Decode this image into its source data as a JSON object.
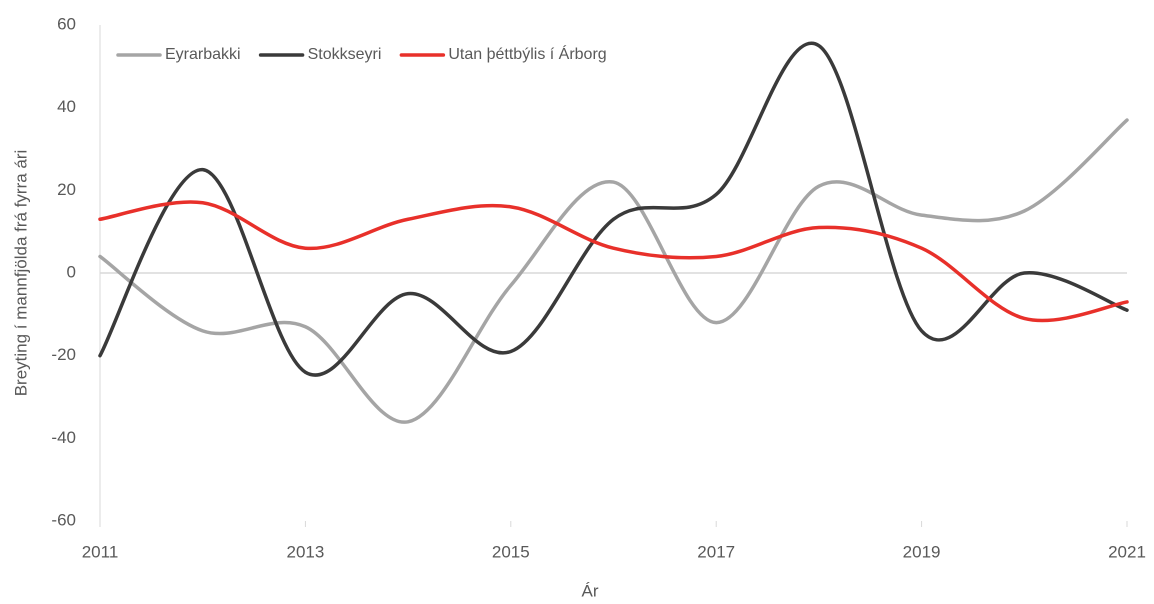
{
  "chart_data": {
    "type": "line",
    "x": [
      2011,
      2012,
      2013,
      2014,
      2015,
      2016,
      2017,
      2018,
      2019,
      2020,
      2021
    ],
    "xlim": [
      2011,
      2021
    ],
    "xticks": [
      2011,
      2013,
      2015,
      2017,
      2019,
      2021
    ],
    "ylim": [
      -60,
      60
    ],
    "yticks": [
      -60,
      -40,
      -20,
      0,
      20,
      40,
      60
    ],
    "xlabel": "Ár",
    "ylabel": "Breyting í mannfjölda frá fyrra ári",
    "grid": false,
    "smooth": true,
    "legend": "top-left",
    "series": [
      {
        "name": "Eyrarbakki",
        "color": "#a5a5a5",
        "values": [
          4,
          -14,
          -13,
          -36,
          -3,
          22,
          -12,
          21,
          14,
          15,
          37
        ]
      },
      {
        "name": "Stokkseyri",
        "color": "#3a3a3a",
        "values": [
          -20,
          25,
          -24,
          -5,
          -19,
          13,
          19,
          55,
          -14,
          0,
          -9
        ]
      },
      {
        "name": "Utan þéttbýlis í Árborg",
        "color": "#e8302a",
        "values": [
          13,
          17,
          6,
          13,
          16,
          6,
          4,
          11,
          6,
          -11,
          -7
        ]
      }
    ]
  }
}
